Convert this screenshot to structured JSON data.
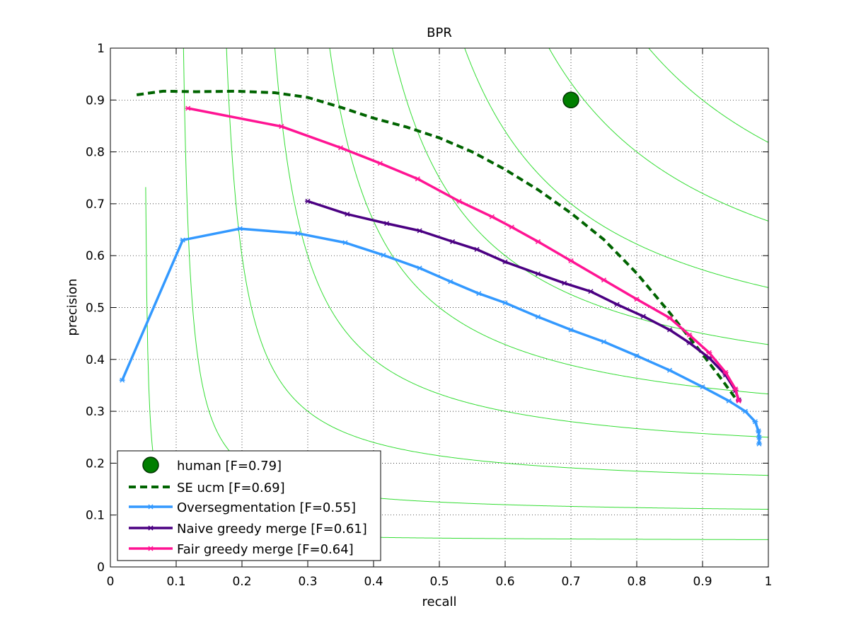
{
  "chart_data": {
    "type": "line",
    "title": "BPR",
    "xlabel": "recall",
    "ylabel": "precision",
    "xlim": [
      0,
      1
    ],
    "ylim": [
      0,
      1
    ],
    "grid": true,
    "legend_position": "bottom-left",
    "xticks": [
      "0",
      "0.1",
      "0.2",
      "0.3",
      "0.4",
      "0.5",
      "0.6",
      "0.7",
      "0.8",
      "0.9",
      "1"
    ],
    "yticks": [
      "0",
      "0.1",
      "0.2",
      "0.3",
      "0.4",
      "0.5",
      "0.6",
      "0.7",
      "0.8",
      "0.9",
      "1"
    ],
    "iso_f_levels": [
      0.1,
      0.2,
      0.3,
      0.4,
      0.5,
      0.6,
      0.7,
      0.8,
      0.9
    ],
    "iso_f_color": "#33dd33",
    "series": [
      {
        "name": "human [F=0.79]",
        "style": "point",
        "color": "#007f00",
        "points": [
          [
            0.7,
            0.9
          ]
        ]
      },
      {
        "name": "SE ucm [F=0.69]",
        "style": "dashed",
        "color": "#006400",
        "points": [
          [
            0.04,
            0.91
          ],
          [
            0.08,
            0.917
          ],
          [
            0.13,
            0.916
          ],
          [
            0.19,
            0.917
          ],
          [
            0.25,
            0.914
          ],
          [
            0.3,
            0.905
          ],
          [
            0.35,
            0.886
          ],
          [
            0.4,
            0.865
          ],
          [
            0.45,
            0.848
          ],
          [
            0.5,
            0.827
          ],
          [
            0.55,
            0.8
          ],
          [
            0.6,
            0.766
          ],
          [
            0.65,
            0.727
          ],
          [
            0.7,
            0.682
          ],
          [
            0.75,
            0.631
          ],
          [
            0.8,
            0.566
          ],
          [
            0.85,
            0.49
          ],
          [
            0.9,
            0.41
          ],
          [
            0.93,
            0.36
          ],
          [
            0.95,
            0.325
          ]
        ]
      },
      {
        "name": "Oversegmentation [F=0.55]",
        "style": "line-marker",
        "color": "#3399ff",
        "points": [
          [
            0.018,
            0.36
          ],
          [
            0.11,
            0.63
          ],
          [
            0.197,
            0.652
          ],
          [
            0.285,
            0.643
          ],
          [
            0.357,
            0.625
          ],
          [
            0.415,
            0.601
          ],
          [
            0.47,
            0.576
          ],
          [
            0.517,
            0.55
          ],
          [
            0.56,
            0.527
          ],
          [
            0.6,
            0.509
          ],
          [
            0.65,
            0.482
          ],
          [
            0.7,
            0.457
          ],
          [
            0.75,
            0.434
          ],
          [
            0.8,
            0.407
          ],
          [
            0.85,
            0.379
          ],
          [
            0.9,
            0.347
          ],
          [
            0.94,
            0.32
          ],
          [
            0.965,
            0.3
          ],
          [
            0.98,
            0.28
          ],
          [
            0.985,
            0.262
          ],
          [
            0.986,
            0.25
          ],
          [
            0.986,
            0.237
          ]
        ]
      },
      {
        "name": "Naive greedy merge [F=0.61]",
        "style": "line-marker",
        "color": "#4b0082",
        "points": [
          [
            0.3,
            0.705
          ],
          [
            0.36,
            0.68
          ],
          [
            0.42,
            0.662
          ],
          [
            0.47,
            0.648
          ],
          [
            0.52,
            0.627
          ],
          [
            0.557,
            0.612
          ],
          [
            0.6,
            0.588
          ],
          [
            0.65,
            0.565
          ],
          [
            0.69,
            0.547
          ],
          [
            0.73,
            0.531
          ],
          [
            0.77,
            0.506
          ],
          [
            0.81,
            0.483
          ],
          [
            0.85,
            0.457
          ],
          [
            0.88,
            0.432
          ],
          [
            0.91,
            0.403
          ],
          [
            0.935,
            0.37
          ],
          [
            0.95,
            0.34
          ],
          [
            0.955,
            0.322
          ]
        ]
      },
      {
        "name": "Fair greedy merge [F=0.64]",
        "style": "line-marker",
        "color": "#ff1493",
        "points": [
          [
            0.118,
            0.884
          ],
          [
            0.26,
            0.849
          ],
          [
            0.35,
            0.808
          ],
          [
            0.41,
            0.778
          ],
          [
            0.467,
            0.748
          ],
          [
            0.53,
            0.705
          ],
          [
            0.58,
            0.675
          ],
          [
            0.61,
            0.655
          ],
          [
            0.65,
            0.627
          ],
          [
            0.7,
            0.59
          ],
          [
            0.75,
            0.553
          ],
          [
            0.8,
            0.516
          ],
          [
            0.85,
            0.48
          ],
          [
            0.88,
            0.447
          ],
          [
            0.91,
            0.413
          ],
          [
            0.935,
            0.375
          ],
          [
            0.95,
            0.343
          ],
          [
            0.955,
            0.32
          ]
        ]
      }
    ]
  }
}
